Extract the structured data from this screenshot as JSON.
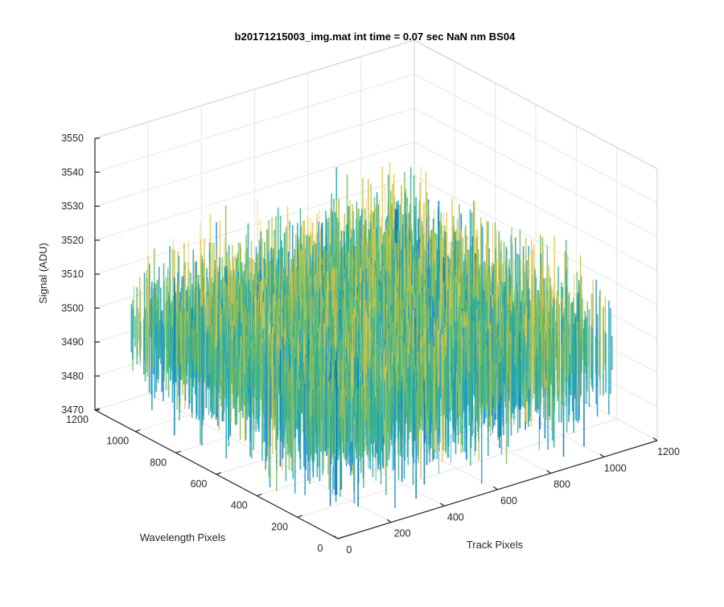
{
  "chart_data": {
    "type": "surface",
    "title": "b20171215003_img.mat int time = 0.07 sec  NaN nm BS04",
    "xlabel": "Track Pixels",
    "ylabel": "Wavelength Pixels",
    "zlabel": "Signal (ADU)",
    "xlim": [
      0,
      1200
    ],
    "ylim": [
      0,
      1200
    ],
    "zlim": [
      3470,
      3550
    ],
    "x_ticks": [
      0,
      200,
      400,
      600,
      800,
      1000,
      1200
    ],
    "y_ticks": [
      0,
      200,
      400,
      600,
      800,
      1000,
      1200
    ],
    "z_ticks": [
      3470,
      3480,
      3490,
      3500,
      3510,
      3520,
      3530,
      3540,
      3550
    ],
    "x_tick_labels": [
      "0",
      "200",
      "400",
      "600",
      "800",
      "1000",
      "1200"
    ],
    "y_tick_labels": [
      "0",
      "200",
      "400",
      "600",
      "800",
      "1000",
      "1200"
    ],
    "z_tick_labels": [
      "3470",
      "3480",
      "3490",
      "3500",
      "3510",
      "3520",
      "3530",
      "3540",
      "3550"
    ],
    "surface": {
      "x_extent": [
        0,
        1024
      ],
      "y_extent": [
        0,
        1024
      ],
      "mean_signal": 3500,
      "typical_range": [
        3485,
        3520
      ],
      "colormap": [
        "#0072BD",
        "#1f8fd6",
        "#19a3b8",
        "#3cb38a",
        "#7fbf5a",
        "#c7c34a",
        "#e9c84e"
      ]
    },
    "grid": true,
    "legend": "none"
  }
}
